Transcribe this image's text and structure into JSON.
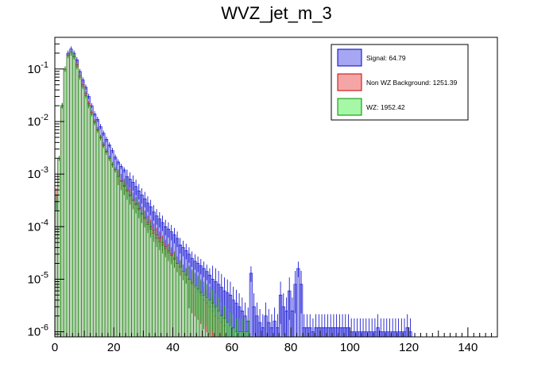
{
  "chart_data": {
    "type": "histogram",
    "title": "WVZ_jet_m_3",
    "xlabel": "",
    "ylabel": "",
    "xlim": [
      0,
      150
    ],
    "ylim": [
      8e-07,
      0.4
    ],
    "yscale": "log",
    "x_ticks": [
      "0",
      "20",
      "40",
      "60",
      "80",
      "100",
      "120",
      "140"
    ],
    "y_ticks": [
      {
        "base": "10",
        "exp": "-1"
      },
      {
        "base": "10",
        "exp": "-2"
      },
      {
        "base": "10",
        "exp": "-3"
      },
      {
        "base": "10",
        "exp": "-4"
      },
      {
        "base": "10",
        "exp": "-5"
      },
      {
        "base": "10",
        "exp": "-6"
      }
    ],
    "legend_position": "top-right",
    "bin_width": 1,
    "series": [
      {
        "name": "Signal: 64.79",
        "fill": "#a6a6f2",
        "line": "#0000cc",
        "bins": [
          [
            0,
            0.0003
          ],
          [
            1,
            0.002
          ],
          [
            2,
            0.02
          ],
          [
            3,
            0.1
          ],
          [
            4,
            0.2
          ],
          [
            5,
            0.24
          ],
          [
            6,
            0.2
          ],
          [
            7,
            0.15
          ],
          [
            8,
            0.09
          ],
          [
            9,
            0.062
          ],
          [
            10,
            0.045
          ],
          [
            11,
            0.03
          ],
          [
            12,
            0.02
          ],
          [
            13,
            0.014
          ],
          [
            14,
            0.011
          ],
          [
            15,
            0.008
          ],
          [
            16,
            0.006
          ],
          [
            17,
            0.0046
          ],
          [
            18,
            0.0036
          ],
          [
            19,
            0.0028
          ],
          [
            20,
            0.0021
          ],
          [
            21,
            0.0017
          ],
          [
            22,
            0.0014
          ],
          [
            23,
            0.0012
          ],
          [
            24,
            0.0009
          ],
          [
            25,
            0.0008
          ],
          [
            26,
            0.0007
          ],
          [
            27,
            0.00058
          ],
          [
            28,
            0.00048
          ],
          [
            29,
            0.0004
          ],
          [
            30,
            0.00034
          ],
          [
            31,
            0.00028
          ],
          [
            32,
            0.00024
          ],
          [
            33,
            0.00019
          ],
          [
            34,
            0.00016
          ],
          [
            35,
            0.00014
          ],
          [
            36,
            0.00012
          ],
          [
            37,
            0.0001
          ],
          [
            38,
            9e-05
          ],
          [
            39,
            8e-05
          ],
          [
            40,
            7e-05
          ],
          [
            41,
            6e-05
          ],
          [
            42,
            4.5e-05
          ],
          [
            43,
            4e-05
          ],
          [
            44,
            3.5e-05
          ],
          [
            45,
            3e-05
          ],
          [
            46,
            2.5e-05
          ],
          [
            47,
            2.2e-05
          ],
          [
            48,
            2e-05
          ],
          [
            49,
            1.8e-05
          ],
          [
            50,
            1.6e-05
          ],
          [
            51,
            1.4e-05
          ],
          [
            52,
            1.2e-05
          ],
          [
            53,
            1e-05
          ],
          [
            54,
            9e-06
          ],
          [
            55,
            8e-06
          ],
          [
            56,
            7e-06
          ],
          [
            57,
            6e-06
          ],
          [
            58,
            5.5e-06
          ],
          [
            59,
            5e-06
          ],
          [
            60,
            4e-06
          ],
          [
            61,
            3.5e-06
          ],
          [
            62,
            3e-06
          ],
          [
            63,
            2.5e-06
          ],
          [
            64,
            2e-06
          ],
          [
            65,
            1.6e-06
          ],
          [
            66,
            1.3e-05
          ],
          [
            67,
            3e-06
          ],
          [
            68,
            2e-06
          ],
          [
            69,
            1.5e-06
          ],
          [
            70,
            1.2e-06
          ],
          [
            71,
            2e-06
          ],
          [
            72,
            1.5e-06
          ],
          [
            73,
            1.2e-06
          ],
          [
            74,
            1.6e-06
          ],
          [
            75,
            1.2e-06
          ],
          [
            76,
            5e-06
          ],
          [
            77,
            3e-06
          ],
          [
            78,
            2.5e-06
          ],
          [
            79,
            6e-06
          ],
          [
            80,
            2.5e-06
          ],
          [
            81,
            8e-06
          ],
          [
            82,
            1.6e-05
          ],
          [
            83,
            8e-06
          ],
          [
            84,
            1.2e-06
          ],
          [
            85,
            1.2e-06
          ],
          [
            86,
            1.2e-06
          ],
          [
            87,
            1e-06
          ],
          [
            88,
            1.2e-06
          ],
          [
            89,
            1.2e-06
          ],
          [
            90,
            1.2e-06
          ],
          [
            91,
            1.2e-06
          ],
          [
            92,
            1.2e-06
          ],
          [
            93,
            1.2e-06
          ],
          [
            94,
            1.2e-06
          ],
          [
            95,
            1.2e-06
          ],
          [
            96,
            1.2e-06
          ],
          [
            97,
            1.2e-06
          ],
          [
            98,
            1.2e-06
          ],
          [
            99,
            1.2e-06
          ],
          [
            100,
            1e-06
          ],
          [
            101,
            1e-06
          ],
          [
            102,
            1e-06
          ],
          [
            103,
            1e-06
          ],
          [
            104,
            1e-06
          ],
          [
            105,
            1e-06
          ],
          [
            106,
            1e-06
          ],
          [
            107,
            1e-06
          ],
          [
            108,
            1e-06
          ],
          [
            109,
            1.2e-06
          ],
          [
            110,
            1e-06
          ],
          [
            111,
            1e-06
          ],
          [
            112,
            1e-06
          ],
          [
            113,
            1e-06
          ],
          [
            114,
            1e-06
          ],
          [
            115,
            1e-06
          ],
          [
            116,
            1e-06
          ],
          [
            117,
            1e-06
          ],
          [
            118,
            1e-06
          ],
          [
            119,
            1.2e-06
          ],
          [
            120,
            1e-06
          ]
        ]
      },
      {
        "name": "Non WZ Background: 1251.39",
        "fill": "#f4a6a6",
        "line": "#cc0000",
        "bins": [
          [
            0,
            0.0004
          ],
          [
            1,
            0.002
          ],
          [
            2,
            0.02
          ],
          [
            3,
            0.1
          ],
          [
            4,
            0.18
          ],
          [
            5,
            0.2
          ],
          [
            6,
            0.17
          ],
          [
            7,
            0.12
          ],
          [
            8,
            0.075
          ],
          [
            9,
            0.05
          ],
          [
            10,
            0.034
          ],
          [
            11,
            0.022
          ],
          [
            12,
            0.015
          ],
          [
            13,
            0.01
          ],
          [
            14,
            0.007
          ],
          [
            15,
            0.005
          ],
          [
            16,
            0.0036
          ],
          [
            17,
            0.0027
          ],
          [
            18,
            0.002
          ],
          [
            19,
            0.0015
          ],
          [
            20,
            0.0012
          ],
          [
            21,
            0.0009
          ],
          [
            22,
            0.00075
          ],
          [
            23,
            0.0006
          ],
          [
            24,
            0.0005
          ],
          [
            25,
            0.0004
          ],
          [
            26,
            0.00033
          ],
          [
            27,
            0.00027
          ],
          [
            28,
            0.00022
          ],
          [
            29,
            0.00018
          ],
          [
            30,
            0.00015
          ],
          [
            31,
            0.00012
          ],
          [
            32,
            0.0001
          ],
          [
            33,
            8.5e-05
          ],
          [
            34,
            7e-05
          ],
          [
            35,
            6e-05
          ],
          [
            36,
            5e-05
          ],
          [
            37,
            4.2e-05
          ],
          [
            38,
            3.5e-05
          ],
          [
            39,
            3e-05
          ],
          [
            40,
            2.5e-05
          ],
          [
            41,
            2e-05
          ],
          [
            42,
            1.7e-05
          ],
          [
            43,
            1.4e-05
          ],
          [
            44,
            1.2e-05
          ],
          [
            45,
            1e-05
          ],
          [
            46,
            8e-06
          ],
          [
            47,
            7e-06
          ],
          [
            48,
            6e-06
          ],
          [
            49,
            5e-06
          ],
          [
            50,
            4e-06
          ],
          [
            51,
            3.5e-06
          ],
          [
            52,
            3e-06
          ],
          [
            53,
            2.5e-06
          ],
          [
            54,
            2e-06
          ],
          [
            55,
            1.8e-06
          ],
          [
            56,
            1.5e-06
          ],
          [
            57,
            1.3e-06
          ]
        ]
      },
      {
        "name": "WZ: 1952.42",
        "fill": "#a6f7a6",
        "line": "#008800",
        "bins": [
          [
            0,
            0.0003
          ],
          [
            1,
            0.002
          ],
          [
            2,
            0.02
          ],
          [
            3,
            0.1
          ],
          [
            4,
            0.18
          ],
          [
            5,
            0.21
          ],
          [
            6,
            0.17
          ],
          [
            7,
            0.11
          ],
          [
            8,
            0.07
          ],
          [
            9,
            0.046
          ],
          [
            10,
            0.031
          ],
          [
            11,
            0.02
          ],
          [
            12,
            0.014
          ],
          [
            13,
            0.0095
          ],
          [
            14,
            0.0068
          ],
          [
            15,
            0.0049
          ],
          [
            16,
            0.0035
          ],
          [
            17,
            0.0026
          ],
          [
            18,
            0.002
          ],
          [
            19,
            0.0015
          ],
          [
            20,
            0.0012
          ],
          [
            21,
            0.0009
          ],
          [
            22,
            0.00072
          ],
          [
            23,
            0.00058
          ],
          [
            24,
            0.00047
          ],
          [
            25,
            0.00038
          ],
          [
            26,
            0.00031
          ],
          [
            27,
            0.00026
          ],
          [
            28,
            0.00021
          ],
          [
            29,
            0.00017
          ],
          [
            30,
            0.00014
          ],
          [
            31,
            0.00011
          ],
          [
            32,
            9e-05
          ],
          [
            33,
            7.5e-05
          ],
          [
            34,
            6e-05
          ],
          [
            35,
            5.2e-05
          ],
          [
            36,
            4.5e-05
          ],
          [
            37,
            3.8e-05
          ],
          [
            38,
            3.2e-05
          ],
          [
            39,
            2.8e-05
          ],
          [
            40,
            2.4e-05
          ],
          [
            41,
            2e-05
          ],
          [
            42,
            1.7e-05
          ],
          [
            43,
            1.4e-05
          ],
          [
            44,
            1.2e-05
          ],
          [
            45,
            1e-05
          ],
          [
            46,
            8.5e-06
          ],
          [
            47,
            7.5e-06
          ],
          [
            48,
            6.5e-06
          ],
          [
            49,
            5.5e-06
          ],
          [
            50,
            5e-06
          ],
          [
            51,
            4.5e-06
          ],
          [
            52,
            4e-06
          ],
          [
            53,
            3.5e-06
          ],
          [
            54,
            3e-06
          ],
          [
            55,
            2.5e-06
          ],
          [
            56,
            2e-06
          ],
          [
            57,
            1.8e-06
          ],
          [
            58,
            1.5e-06
          ],
          [
            59,
            1.3e-06
          ],
          [
            60,
            1.2e-06
          ],
          [
            61,
            1e-06
          ],
          [
            62,
            1e-06
          ],
          [
            63,
            1e-06
          ],
          [
            64,
            1e-06
          ],
          [
            65,
            1e-06
          ]
        ]
      }
    ]
  }
}
